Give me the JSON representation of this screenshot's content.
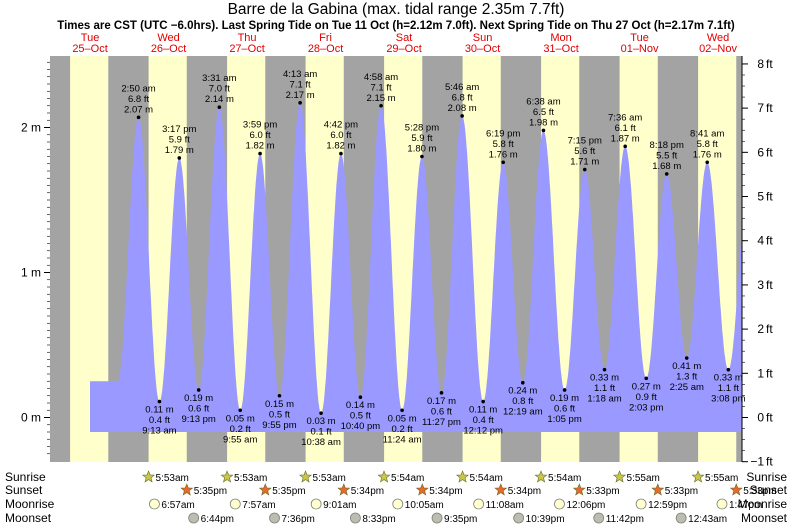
{
  "chart_data": {
    "type": "area",
    "title": "Barre de la Gabina (max. tidal range 2.35m 7.7ft)",
    "subtitle": "Times are CST (UTC −6.0hrs). Last Spring Tide on Tue 11 Oct (h=2.12m 7.0ft). Next Spring Tide on Thu 27 Oct (h=2.17m 7.1ft)",
    "ylabel_left_unit": "m",
    "ylabel_right_unit": "ft",
    "ylim_m": [
      -0.25,
      2.45
    ],
    "left_ticks": [
      "0 m",
      "1 m",
      "2 m"
    ],
    "right_ticks": [
      "−1 ft",
      "0 ft",
      "1 ft",
      "2 ft",
      "3 ft",
      "4 ft",
      "5 ft",
      "6 ft",
      "7 ft",
      "8 ft"
    ],
    "days": [
      {
        "name": "Tue",
        "date": "25–Oct"
      },
      {
        "name": "Wed",
        "date": "26–Oct"
      },
      {
        "name": "Thu",
        "date": "27–Oct"
      },
      {
        "name": "Fri",
        "date": "28–Oct"
      },
      {
        "name": "Sat",
        "date": "29–Oct"
      },
      {
        "name": "Sun",
        "date": "30–Oct"
      },
      {
        "name": "Mon",
        "date": "31–Oct"
      },
      {
        "name": "Tue",
        "date": "01–Nov"
      },
      {
        "name": "Wed",
        "date": "02–Nov"
      }
    ],
    "tides": [
      {
        "type": "high",
        "time": "2:50 am",
        "ft": "6.8 ft",
        "m": "2.07 m",
        "value": 2.07,
        "t": 1.118
      },
      {
        "type": "low",
        "time": "9:13 am",
        "ft": "0.4 ft",
        "m": "0.11 m",
        "value": 0.11,
        "t": 1.384
      },
      {
        "type": "high",
        "time": "3:17 pm",
        "ft": "5.9 ft",
        "m": "1.79 m",
        "value": 1.79,
        "t": 1.637
      },
      {
        "type": "low",
        "time": "9:13 pm",
        "ft": "0.6 ft",
        "m": "0.19 m",
        "value": 0.19,
        "t": 1.884
      },
      {
        "type": "high",
        "time": "3:31 am",
        "ft": "7.0 ft",
        "m": "2.14 m",
        "value": 2.14,
        "t": 2.147
      },
      {
        "type": "low",
        "time": "9:55 am",
        "ft": "0.2 ft",
        "m": "0.05 m",
        "value": 0.05,
        "t": 2.413
      },
      {
        "type": "high",
        "time": "3:59 pm",
        "ft": "6.0 ft",
        "m": "1.82 m",
        "value": 1.82,
        "t": 2.666
      },
      {
        "type": "low",
        "time": "9:55 pm",
        "ft": "0.5 ft",
        "m": "0.15 m",
        "value": 0.15,
        "t": 2.913
      },
      {
        "type": "high",
        "time": "4:13 am",
        "ft": "7.1 ft",
        "m": "2.17 m",
        "value": 2.17,
        "t": 3.176
      },
      {
        "type": "low",
        "time": "10:38 am",
        "ft": "0.1 ft",
        "m": "0.03 m",
        "value": 0.03,
        "t": 3.443
      },
      {
        "type": "high",
        "time": "4:42 pm",
        "ft": "6.0 ft",
        "m": "1.82 m",
        "value": 1.82,
        "t": 3.696
      },
      {
        "type": "low",
        "time": "10:40 pm",
        "ft": "0.5 ft",
        "m": "0.14 m",
        "value": 0.14,
        "t": 3.944
      },
      {
        "type": "high",
        "time": "4:58 am",
        "ft": "7.1 ft",
        "m": "2.15 m",
        "value": 2.15,
        "t": 4.207
      },
      {
        "type": "low",
        "time": "11:24 am",
        "ft": "0.2 ft",
        "m": "0.05 m",
        "value": 0.05,
        "t": 4.475
      },
      {
        "type": "high",
        "time": "5:28 pm",
        "ft": "5.9 ft",
        "m": "1.80 m",
        "value": 1.8,
        "t": 4.728
      },
      {
        "type": "low",
        "time": "11:27 pm",
        "ft": "0.6 ft",
        "m": "0.17 m",
        "value": 0.17,
        "t": 4.977
      },
      {
        "type": "high",
        "time": "5:46 am",
        "ft": "6.8 ft",
        "m": "2.08 m",
        "value": 2.08,
        "t": 5.24
      },
      {
        "type": "low",
        "time": "12:12 pm",
        "ft": "0.4 ft",
        "m": "0.11 m",
        "value": 0.11,
        "t": 5.508
      },
      {
        "type": "high",
        "time": "6:19 pm",
        "ft": "5.8 ft",
        "m": "1.76 m",
        "value": 1.76,
        "t": 5.763
      },
      {
        "type": "low",
        "time": "12:19 am",
        "ft": "0.8 ft",
        "m": "0.24 m",
        "value": 0.24,
        "t": 6.013
      },
      {
        "type": "high",
        "time": "6:38 am",
        "ft": "6.5 ft",
        "m": "1.98 m",
        "value": 1.98,
        "t": 6.276
      },
      {
        "type": "low",
        "time": "1:05 pm",
        "ft": "0.6 ft",
        "m": "0.19 m",
        "value": 0.19,
        "t": 6.545
      },
      {
        "type": "high",
        "time": "7:15 pm",
        "ft": "5.6 ft",
        "m": "1.71 m",
        "value": 1.71,
        "t": 6.802
      },
      {
        "type": "low",
        "time": "1:18 am",
        "ft": "1.1 ft",
        "m": "0.33 m",
        "value": 0.33,
        "t": 7.054
      },
      {
        "type": "high",
        "time": "7:36 am",
        "ft": "6.1 ft",
        "m": "1.87 m",
        "value": 1.87,
        "t": 7.317
      },
      {
        "type": "low",
        "time": "2:03 pm",
        "ft": "0.9 ft",
        "m": "0.27 m",
        "value": 0.27,
        "t": 7.585
      },
      {
        "type": "high",
        "time": "8:18 pm",
        "ft": "5.5 ft",
        "m": "1.68 m",
        "value": 1.68,
        "t": 7.846
      },
      {
        "type": "low",
        "time": "2:25 am",
        "ft": "1.3 ft",
        "m": "0.41 m",
        "value": 0.41,
        "t": 8.101
      },
      {
        "type": "high",
        "time": "8:41 am",
        "ft": "5.8 ft",
        "m": "1.76 m",
        "value": 1.76,
        "t": 8.362
      },
      {
        "type": "low",
        "time": "3:08 pm",
        "ft": "1.1 ft",
        "m": "0.33 m",
        "value": 0.33,
        "t": 8.631
      }
    ],
    "sunrise": [
      "5:53am",
      "5:53am",
      "5:53am",
      "5:54am",
      "5:54am",
      "5:54am",
      "5:55am",
      "5:55am"
    ],
    "sunset": [
      "5:35pm",
      "5:35pm",
      "5:34pm",
      "5:34pm",
      "5:34pm",
      "5:33pm",
      "5:33pm",
      "5:33pm"
    ],
    "moonrise": [
      "6:57am",
      "7:57am",
      "9:01am",
      "10:05am",
      "11:08am",
      "12:06pm",
      "12:59pm",
      "1:47pm"
    ],
    "moonset": [
      "6:44pm",
      "7:36pm",
      "8:33pm",
      "9:35pm",
      "10:39pm",
      "11:42pm",
      "12:43am"
    ],
    "row_labels": {
      "sunrise": "Sunrise",
      "sunset": "Sunset",
      "moonrise": "Moonrise",
      "moonset": "Moonset"
    },
    "colors": {
      "night": "#a3a3a3",
      "day": "#ffffcc",
      "water": "#9999ff",
      "day_name": "#e00000"
    },
    "grid": false
  }
}
